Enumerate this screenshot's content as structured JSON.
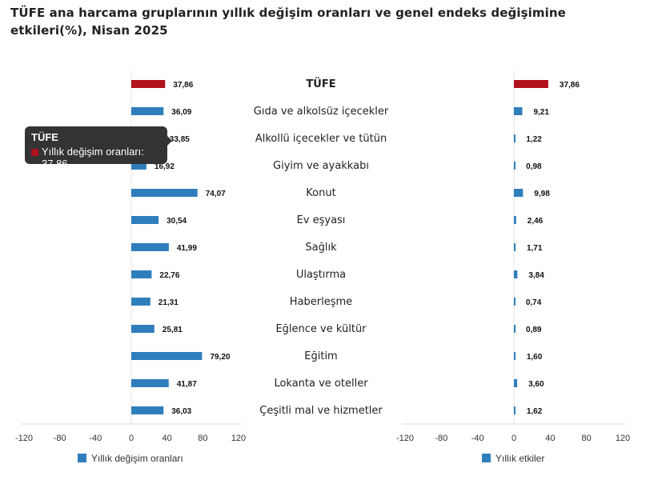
{
  "title": "TÜFE ana harcama gruplarının yıllık değişim oranları ve genel endeks değişimine etkileri(%), Nisan 2025",
  "tooltip": {
    "header": "TÜFE",
    "text": "Yıllık değişim oranları: 37.86"
  },
  "colors": {
    "highlight": "#b0121b",
    "bar": "#2f7ebc",
    "hovered": "#0d1b2a"
  },
  "chart_data": [
    {
      "type": "bar",
      "orientation": "horizontal",
      "legend": "Yıllık değişim oranları",
      "legend_position": "bottom",
      "xlim": [
        -120,
        120
      ],
      "ticks": [
        "-120",
        "-80",
        "-40",
        "0",
        "40",
        "80",
        "120"
      ],
      "categories": [
        "TÜFE",
        "Gıda ve alkolsüz içecekler",
        "Alkollü içecekler ve tütün",
        "Giyim ve ayakkabı",
        "Konut",
        "Ev eşyası",
        "Sağlık",
        "Ulaştırma",
        "Haberleşme",
        "Eğlence ve kültür",
        "Eğitim",
        "Lokanta ve oteller",
        "Çeşitli mal ve hizmetler"
      ],
      "values": [
        37.86,
        36.09,
        33.85,
        16.92,
        74.07,
        30.54,
        41.99,
        22.76,
        21.31,
        25.81,
        79.2,
        41.87,
        36.03
      ],
      "labels": [
        "37,86",
        "36,09",
        "33,85",
        "16,92",
        "74,07",
        "30,54",
        "41,99",
        "22,76",
        "21,31",
        "25,81",
        "79,20",
        "41,87",
        "36,03"
      ]
    },
    {
      "type": "bar",
      "orientation": "horizontal",
      "legend": "Yıllık etkiler",
      "legend_position": "bottom",
      "xlim": [
        -120,
        120
      ],
      "ticks": [
        "-120",
        "-80",
        "-40",
        "0",
        "40",
        "80",
        "120"
      ],
      "values": [
        37.86,
        9.21,
        1.22,
        0.98,
        9.98,
        2.46,
        1.71,
        3.84,
        0.74,
        0.89,
        1.6,
        3.6,
        1.62
      ],
      "labels": [
        "37,86",
        "9,21",
        "1,22",
        "0,98",
        "9,98",
        "2,46",
        "1,71",
        "3,84",
        "0,74",
        "0,89",
        "1,60",
        "3,60",
        "1,62"
      ]
    }
  ]
}
